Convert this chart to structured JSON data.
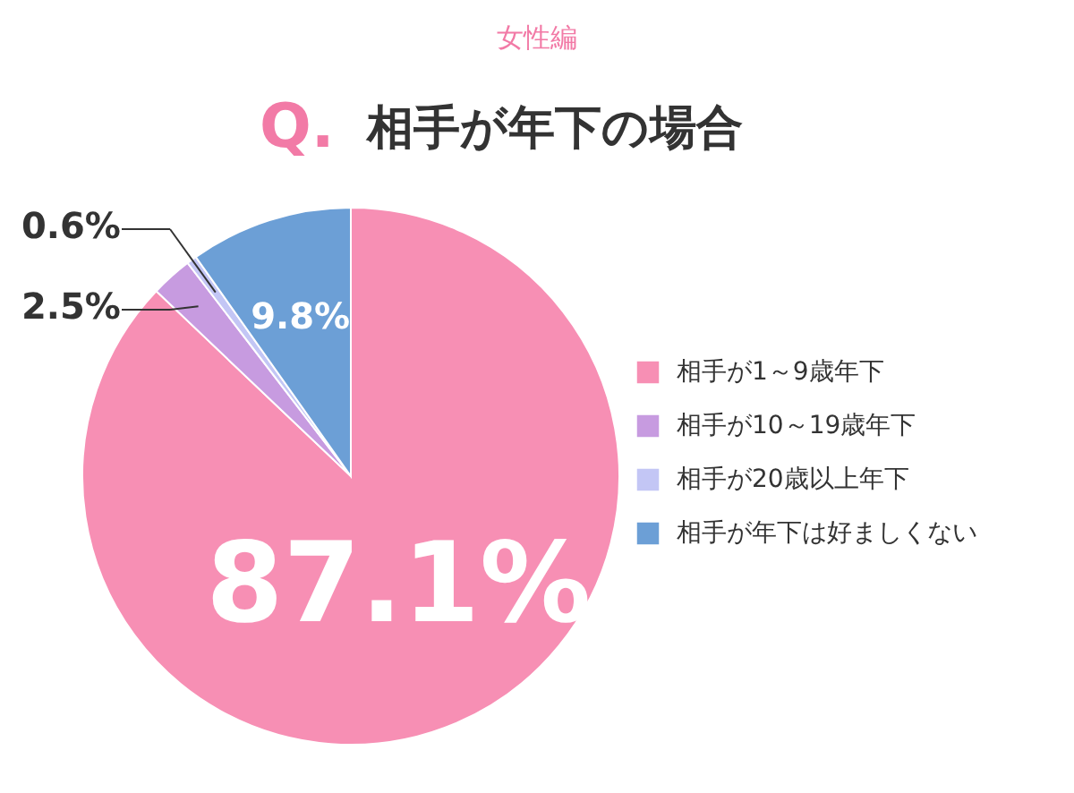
{
  "chart_data": {
    "type": "pie",
    "title": "相手が年下の場合",
    "subtitle": "女性編",
    "annotations": [
      "Q."
    ],
    "categories": [
      "相手が1～9歳年下",
      "相手が10～19歳年下",
      "相手が20歳以上年下",
      "相手が年下は好ましくない"
    ],
    "values": [
      87.1,
      2.5,
      0.6,
      9.8
    ],
    "colors": [
      "#f78fb4",
      "#c79be0",
      "#c3c6f5",
      "#6c9fd6"
    ],
    "value_labels": [
      "87.1%",
      "2.5%",
      "0.6%",
      "9.8%"
    ],
    "legend": "right"
  }
}
